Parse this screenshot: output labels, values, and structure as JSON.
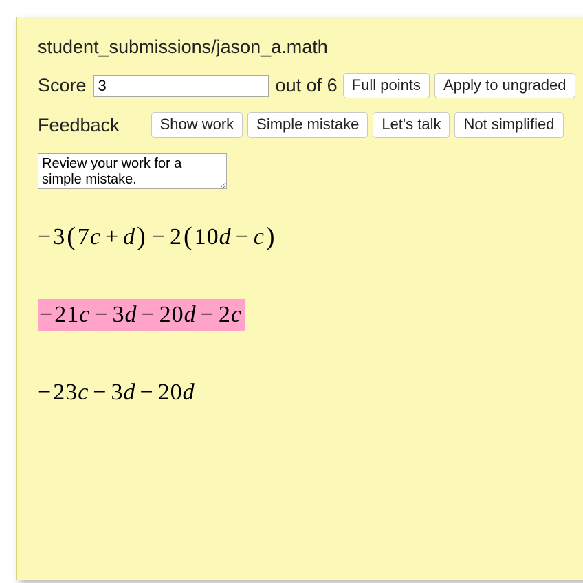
{
  "colors": {
    "panel_bg": "#fbf8b8",
    "panel_border": "#d8d47a",
    "highlight": "#ffa3c8"
  },
  "title": "student_submissions/jason_a.math",
  "score": {
    "label": "Score",
    "value": "3",
    "outof_prefix": "out of",
    "outof_value": "6"
  },
  "buttons": {
    "full_points": "Full points",
    "apply_ungraded": "Apply to ungraded",
    "show_work": "Show work",
    "simple_mistake": "Simple mistake",
    "lets_talk": "Let's talk",
    "not_simplified": "Not simplified"
  },
  "feedback": {
    "label": "Feedback",
    "text": "Review your work for a simple mistake."
  },
  "math": {
    "line1_html": "<span class='minus-lead'>−</span>3<span class='paren'>(</span>7<span class='mi'>c</span><span class='op'>+</span><span class='mi'>d</span><span class='paren'>)</span><span class='op'>−</span>2<span class='paren'>(</span>10<span class='mi'>d</span><span class='op'>−</span><span class='mi'>c</span><span class='paren'>)</span>",
    "line2_html": "<span class='minus-lead'>−</span>21<span class='mi'>c</span><span class='op'>−</span>3<span class='mi'>d</span><span class='op'>−</span>20<span class='mi'>d</span><span class='op'>−</span>2<span class='mi'>c</span>",
    "line3_html": "<span class='minus-lead'>−</span>23<span class='mi'>c</span><span class='op'>−</span>3<span class='mi'>d</span><span class='op'>−</span>20<span class='mi'>d</span>",
    "line2_highlighted": true
  }
}
